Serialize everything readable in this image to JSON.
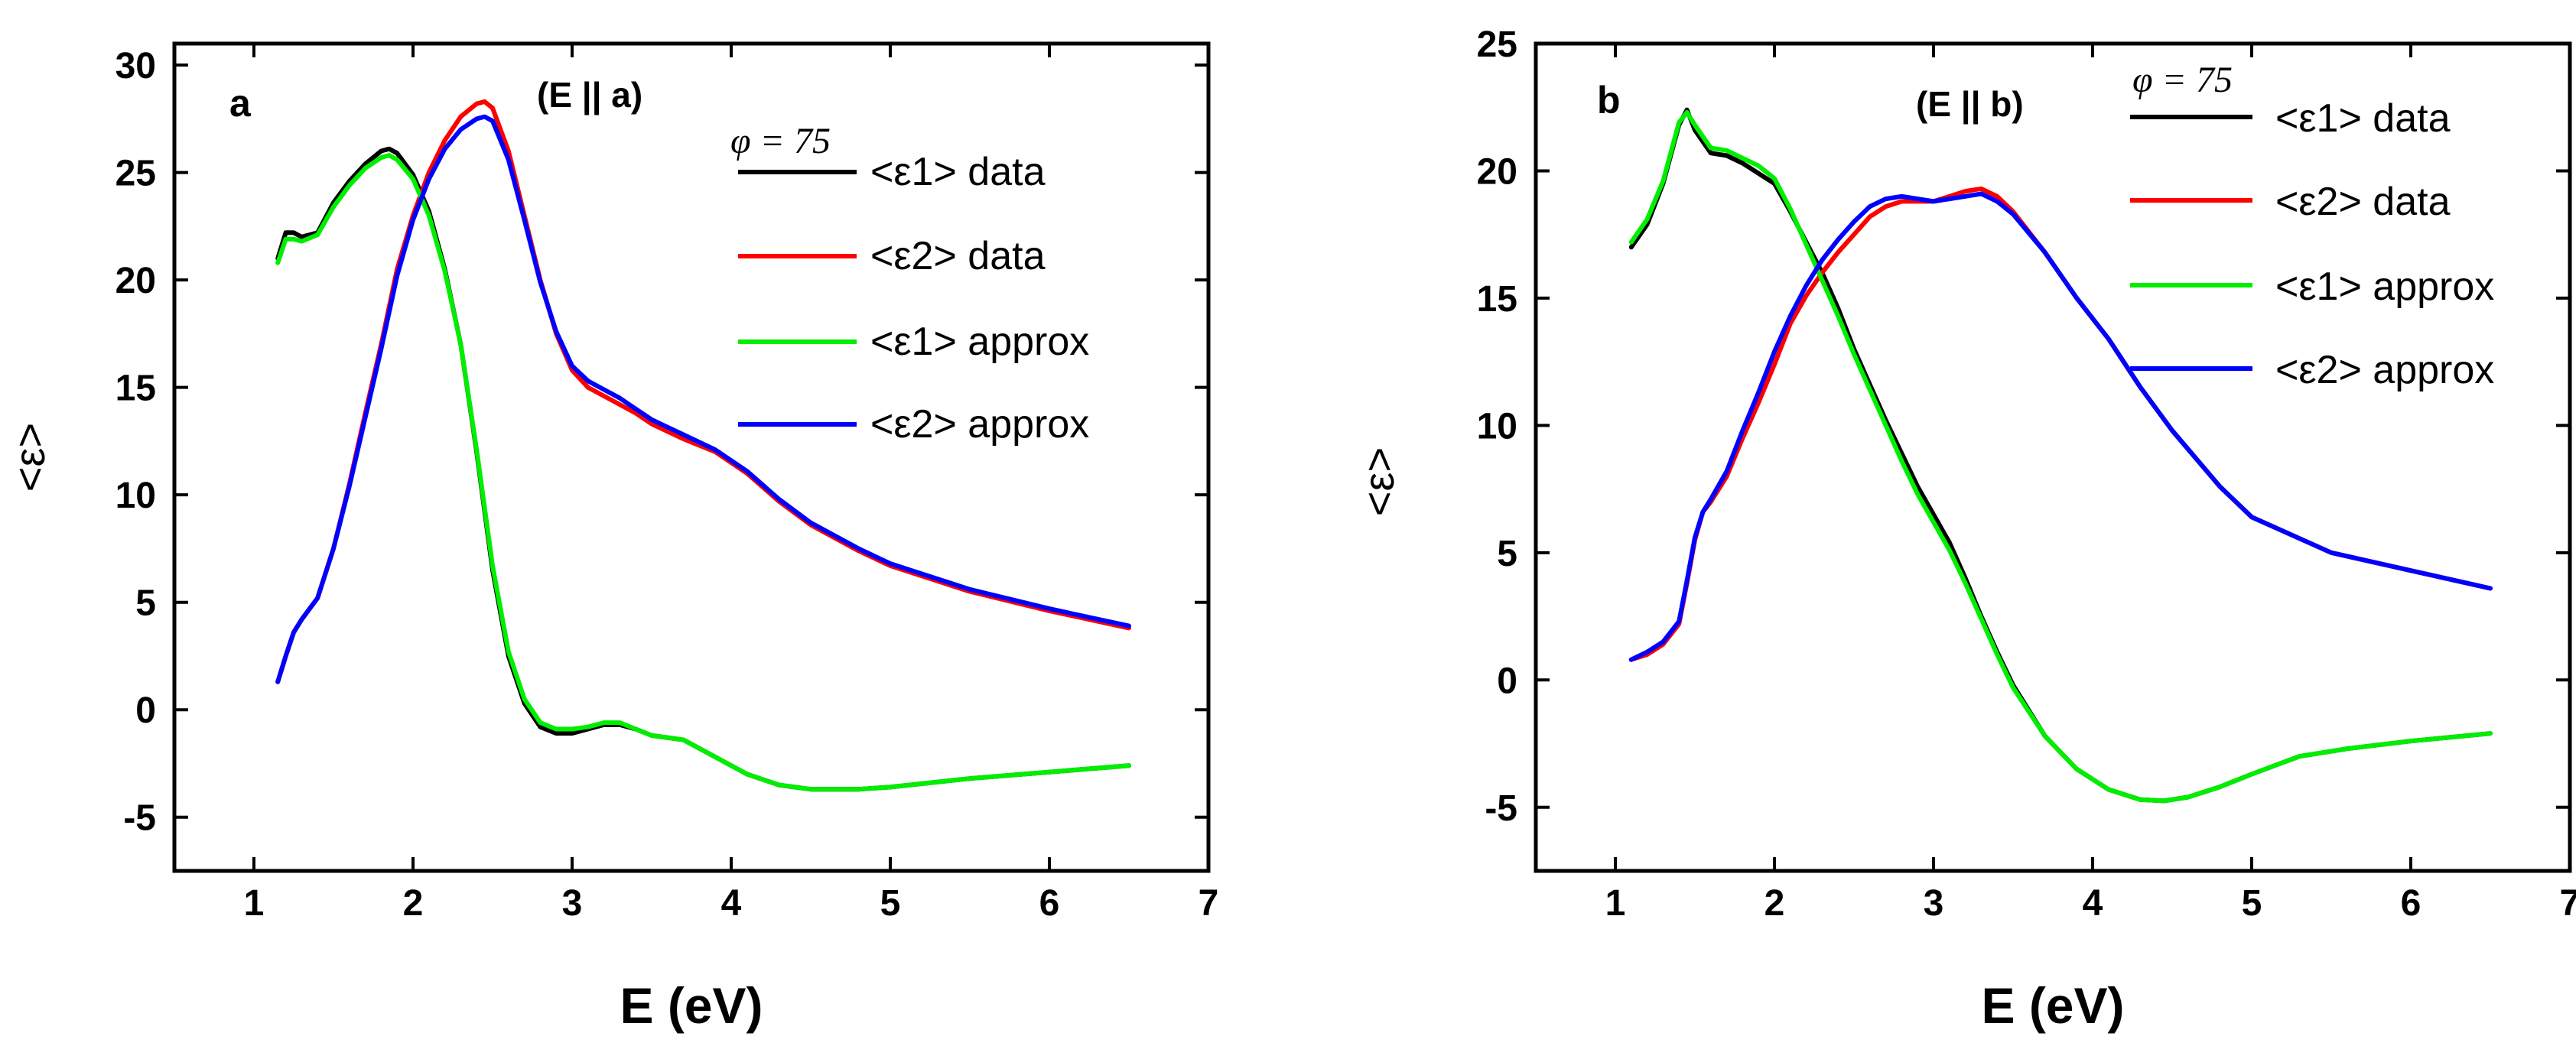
{
  "chart_data": [
    {
      "type": "line",
      "panel_label": "a",
      "condition": "(E || a)",
      "angle_label": "φ = 75",
      "xlabel": "E (eV)",
      "ylabel": "<ε>",
      "xlim": [
        0.5,
        7
      ],
      "ylim": [
        -7.5,
        31
      ],
      "xticks": [
        1,
        2,
        3,
        4,
        5,
        6,
        7
      ],
      "yticks": [
        -5,
        0,
        5,
        10,
        15,
        20,
        25,
        30
      ],
      "legend_position": "top-right",
      "legend": [
        "<ε1> data",
        "<ε2> data",
        "<ε1> approx",
        "<ε2> approx"
      ],
      "series": [
        {
          "name": "<ε1> data",
          "color": "#000000",
          "x": [
            1.15,
            1.2,
            1.25,
            1.3,
            1.4,
            1.5,
            1.6,
            1.7,
            1.8,
            1.85,
            1.9,
            2.0,
            2.1,
            2.2,
            2.3,
            2.4,
            2.5,
            2.6,
            2.7,
            2.8,
            2.9,
            3.0,
            3.1,
            3.2,
            3.3,
            3.4,
            3.5,
            3.7,
            3.9,
            4.1,
            4.3,
            4.5,
            4.8,
            5.0,
            5.5,
            6.0,
            6.5
          ],
          "y": [
            21.0,
            22.2,
            22.2,
            22.0,
            22.2,
            23.6,
            24.6,
            25.4,
            26.0,
            26.1,
            25.9,
            24.9,
            23.2,
            20.5,
            17.0,
            12.0,
            6.5,
            2.5,
            0.3,
            -0.8,
            -1.1,
            -1.1,
            -0.9,
            -0.7,
            -0.7,
            -0.9,
            -1.2,
            -1.4,
            -2.2,
            -3.0,
            -3.5,
            -3.7,
            -3.7,
            -3.6,
            -3.2,
            -2.9,
            -2.6
          ]
        },
        {
          "name": "<ε2> data",
          "color": "#ff0000",
          "x": [
            1.15,
            1.2,
            1.25,
            1.3,
            1.4,
            1.5,
            1.6,
            1.7,
            1.8,
            1.9,
            2.0,
            2.1,
            2.2,
            2.3,
            2.4,
            2.45,
            2.5,
            2.6,
            2.7,
            2.8,
            2.9,
            3.0,
            3.1,
            3.2,
            3.3,
            3.4,
            3.5,
            3.7,
            3.9,
            4.1,
            4.3,
            4.5,
            4.8,
            5.0,
            5.5,
            6.0,
            6.5
          ],
          "y": [
            1.3,
            2.5,
            3.6,
            4.2,
            5.2,
            7.5,
            10.5,
            13.8,
            17.0,
            20.5,
            23.0,
            25.0,
            26.5,
            27.6,
            28.2,
            28.3,
            28.0,
            26.0,
            23.0,
            20.0,
            17.5,
            15.8,
            15.0,
            14.6,
            14.2,
            13.8,
            13.3,
            12.6,
            12.0,
            11.0,
            9.7,
            8.6,
            7.4,
            6.7,
            5.5,
            4.6,
            3.8
          ]
        },
        {
          "name": "<ε1> approx",
          "color": "#00ee00",
          "x": [
            1.15,
            1.2,
            1.25,
            1.3,
            1.4,
            1.5,
            1.6,
            1.7,
            1.8,
            1.85,
            1.9,
            2.0,
            2.1,
            2.2,
            2.3,
            2.4,
            2.5,
            2.6,
            2.7,
            2.8,
            2.9,
            3.0,
            3.1,
            3.2,
            3.3,
            3.4,
            3.5,
            3.7,
            3.9,
            4.1,
            4.3,
            4.5,
            4.8,
            5.0,
            5.5,
            6.0,
            6.5
          ],
          "y": [
            20.8,
            21.9,
            21.9,
            21.8,
            22.1,
            23.4,
            24.4,
            25.2,
            25.7,
            25.8,
            25.6,
            24.7,
            23.0,
            20.4,
            17.0,
            12.1,
            6.7,
            2.7,
            0.5,
            -0.6,
            -0.9,
            -0.9,
            -0.8,
            -0.6,
            -0.6,
            -0.9,
            -1.2,
            -1.4,
            -2.2,
            -3.0,
            -3.5,
            -3.7,
            -3.7,
            -3.6,
            -3.2,
            -2.9,
            -2.6
          ]
        },
        {
          "name": "<ε2> approx",
          "color": "#0000ff",
          "x": [
            1.15,
            1.2,
            1.25,
            1.3,
            1.4,
            1.5,
            1.6,
            1.7,
            1.8,
            1.9,
            2.0,
            2.1,
            2.2,
            2.3,
            2.4,
            2.45,
            2.5,
            2.6,
            2.7,
            2.8,
            2.9,
            3.0,
            3.1,
            3.2,
            3.3,
            3.4,
            3.5,
            3.7,
            3.9,
            4.1,
            4.3,
            4.5,
            4.8,
            5.0,
            5.5,
            6.0,
            6.5
          ],
          "y": [
            1.3,
            2.5,
            3.6,
            4.2,
            5.2,
            7.5,
            10.4,
            13.6,
            16.8,
            20.2,
            22.8,
            24.7,
            26.1,
            27.0,
            27.5,
            27.6,
            27.4,
            25.6,
            22.8,
            19.9,
            17.6,
            16.0,
            15.3,
            14.9,
            14.5,
            14.0,
            13.5,
            12.8,
            12.1,
            11.1,
            9.8,
            8.7,
            7.5,
            6.8,
            5.6,
            4.7,
            3.9
          ]
        }
      ]
    },
    {
      "type": "line",
      "panel_label": "b",
      "condition": "(E || b)",
      "angle_label": "φ = 75",
      "xlabel": "E (eV)",
      "ylabel": "<ε>",
      "xlim": [
        0.5,
        7
      ],
      "ylim": [
        -7.5,
        25
      ],
      "xticks": [
        1,
        2,
        3,
        4,
        5,
        6,
        7
      ],
      "yticks": [
        -5,
        0,
        5,
        10,
        15,
        20,
        25
      ],
      "legend_position": "top-right",
      "legend": [
        "<ε1> data",
        "<ε2> data",
        "<ε1> approx",
        "<ε2> approx"
      ],
      "series": [
        {
          "name": "<ε1> data",
          "color": "#000000",
          "x": [
            1.1,
            1.2,
            1.3,
            1.4,
            1.45,
            1.5,
            1.6,
            1.7,
            1.8,
            1.9,
            2.0,
            2.1,
            2.2,
            2.3,
            2.4,
            2.5,
            2.6,
            2.7,
            2.8,
            2.9,
            3.0,
            3.1,
            3.2,
            3.3,
            3.4,
            3.5,
            3.7,
            3.9,
            4.1,
            4.3,
            4.45,
            4.6,
            4.8,
            5.0,
            5.3,
            5.6,
            6.0,
            6.5
          ],
          "y": [
            17.0,
            17.9,
            19.5,
            21.8,
            22.4,
            21.6,
            20.7,
            20.6,
            20.3,
            19.9,
            19.5,
            18.4,
            17.2,
            16.0,
            14.6,
            13.0,
            11.6,
            10.2,
            8.9,
            7.6,
            6.5,
            5.4,
            4.0,
            2.5,
            1.1,
            -0.2,
            -2.2,
            -3.5,
            -4.3,
            -4.7,
            -4.75,
            -4.6,
            -4.2,
            -3.7,
            -3.0,
            -2.7,
            -2.4,
            -2.1
          ]
        },
        {
          "name": "<ε2> data",
          "color": "#ff0000",
          "x": [
            1.1,
            1.2,
            1.3,
            1.4,
            1.45,
            1.5,
            1.55,
            1.6,
            1.7,
            1.8,
            1.9,
            2.0,
            2.1,
            2.2,
            2.3,
            2.4,
            2.5,
            2.6,
            2.7,
            2.8,
            2.9,
            3.0,
            3.1,
            3.2,
            3.3,
            3.4,
            3.5,
            3.7,
            3.9,
            4.1,
            4.3,
            4.5,
            4.8,
            5.0,
            5.5,
            6.0,
            6.5
          ],
          "y": [
            0.8,
            1.0,
            1.4,
            2.2,
            3.8,
            5.5,
            6.6,
            7.0,
            8.0,
            9.5,
            10.9,
            12.4,
            14.0,
            15.1,
            16.0,
            16.8,
            17.5,
            18.2,
            18.6,
            18.8,
            18.8,
            18.8,
            19.0,
            19.2,
            19.3,
            19.0,
            18.4,
            16.8,
            15.0,
            13.4,
            11.5,
            9.8,
            7.6,
            6.4,
            5.0,
            4.3,
            3.6
          ]
        },
        {
          "name": "<ε1> approx",
          "color": "#00ee00",
          "x": [
            1.1,
            1.2,
            1.3,
            1.4,
            1.45,
            1.5,
            1.6,
            1.7,
            1.8,
            1.9,
            2.0,
            2.1,
            2.2,
            2.3,
            2.4,
            2.5,
            2.6,
            2.7,
            2.8,
            2.9,
            3.0,
            3.1,
            3.2,
            3.3,
            3.4,
            3.5,
            3.7,
            3.9,
            4.1,
            4.3,
            4.45,
            4.6,
            4.8,
            5.0,
            5.3,
            5.6,
            6.0,
            6.5
          ],
          "y": [
            17.2,
            18.1,
            19.6,
            21.9,
            22.3,
            21.8,
            20.9,
            20.8,
            20.5,
            20.2,
            19.7,
            18.5,
            17.1,
            15.7,
            14.3,
            12.8,
            11.4,
            10.0,
            8.6,
            7.3,
            6.2,
            5.1,
            3.8,
            2.4,
            1.0,
            -0.3,
            -2.2,
            -3.5,
            -4.3,
            -4.7,
            -4.75,
            -4.6,
            -4.2,
            -3.7,
            -3.0,
            -2.7,
            -2.4,
            -2.1
          ]
        },
        {
          "name": "<ε2> approx",
          "color": "#0000ff",
          "x": [
            1.1,
            1.2,
            1.3,
            1.4,
            1.45,
            1.5,
            1.55,
            1.6,
            1.7,
            1.8,
            1.9,
            2.0,
            2.1,
            2.2,
            2.3,
            2.4,
            2.5,
            2.6,
            2.7,
            2.8,
            2.9,
            3.0,
            3.1,
            3.2,
            3.3,
            3.4,
            3.5,
            3.7,
            3.9,
            4.1,
            4.3,
            4.5,
            4.8,
            5.0,
            5.5,
            6.0,
            6.5
          ],
          "y": [
            0.8,
            1.1,
            1.5,
            2.3,
            3.9,
            5.6,
            6.6,
            7.1,
            8.2,
            9.8,
            11.3,
            12.9,
            14.3,
            15.5,
            16.5,
            17.3,
            18.0,
            18.6,
            18.9,
            19.0,
            18.9,
            18.8,
            18.9,
            19.0,
            19.1,
            18.8,
            18.3,
            16.8,
            15.0,
            13.4,
            11.5,
            9.8,
            7.6,
            6.4,
            5.0,
            4.3,
            3.6
          ]
        }
      ]
    }
  ]
}
